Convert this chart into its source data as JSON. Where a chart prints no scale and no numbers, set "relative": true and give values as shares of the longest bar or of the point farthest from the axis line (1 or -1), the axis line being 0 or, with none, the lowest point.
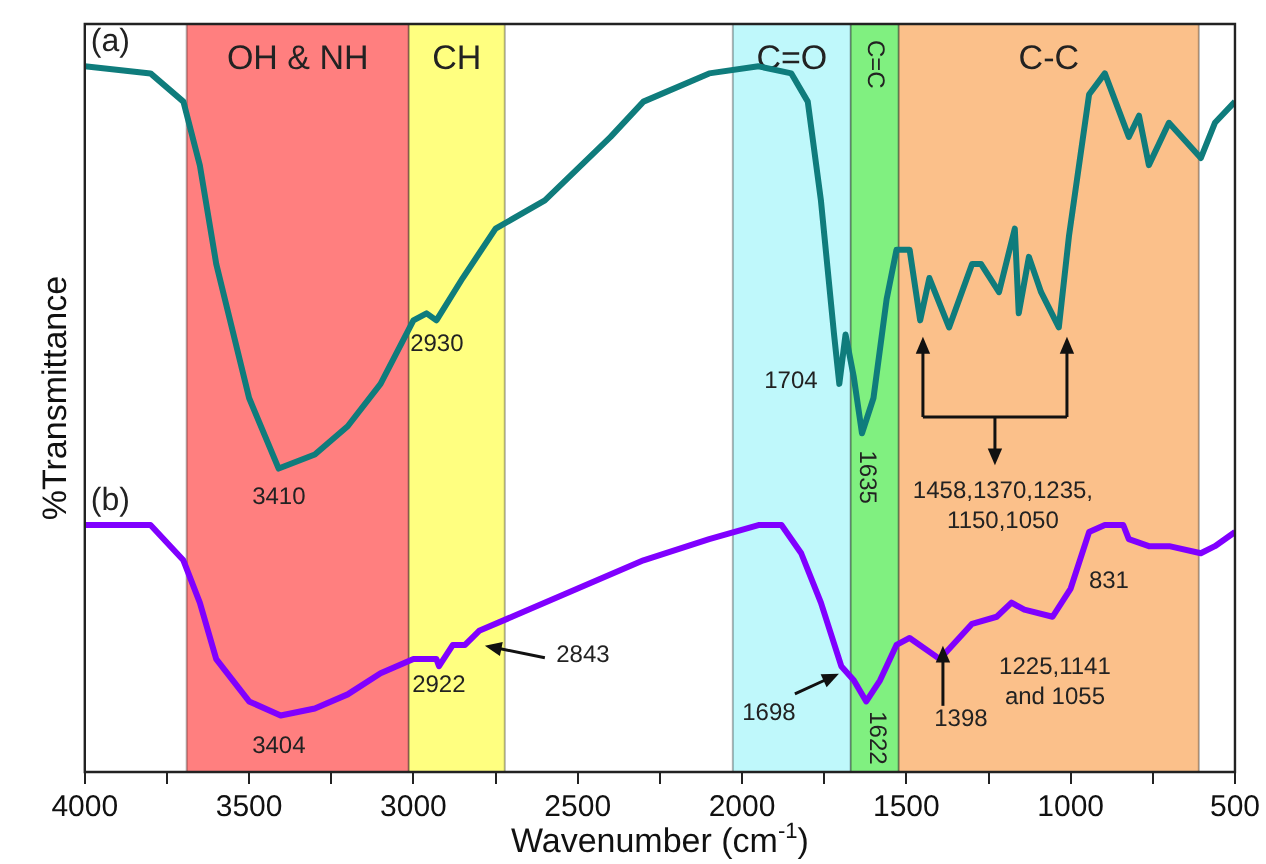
{
  "chart_data": {
    "type": "line",
    "relative": true,
    "xlabel": "Wavenumber (cm$^{-1}$)",
    "ylabel": "%Transmittance",
    "xlim": [
      4000,
      500
    ],
    "xticks": [
      4000,
      {
        "value": 3750,
        "label": null
      },
      3500,
      {
        "value": 3250,
        "label": null
      },
      3000,
      {
        "value": 2750,
        "label": null
      },
      2500,
      {
        "value": 2250,
        "label": null
      },
      2000,
      {
        "value": 1750,
        "label": null
      },
      1500,
      {
        "value": 1250,
        "label": null
      },
      1000,
      {
        "value": 750,
        "label": null
      },
      500
    ],
    "tick_labels": "x",
    "grid": false,
    "legend": false,
    "marker": "none",
    "line_style": "solid",
    "series": [
      {
        "name": "(a)",
        "color": "#0f7c7c",
        "x": [
          4000,
          3800,
          3700,
          3650,
          3600,
          3500,
          3410,
          3300,
          3200,
          3100,
          3000,
          2960,
          2930,
          2850,
          2750,
          2600,
          2400,
          2300,
          2100,
          1950,
          1850,
          1800,
          1760,
          1720,
          1704,
          1685,
          1660,
          1635,
          1600,
          1560,
          1530,
          1490,
          1458,
          1430,
          1370,
          1300,
          1273,
          1218,
          1170,
          1158,
          1127,
          1090,
          1036,
          1005,
          944,
          896,
          823,
          792,
          762,
          701,
          604,
          561,
          500
        ],
        "values": [
          1.0,
          0.99,
          0.95,
          0.86,
          0.72,
          0.53,
          0.43,
          0.45,
          0.49,
          0.55,
          0.64,
          0.65,
          0.64,
          0.7,
          0.77,
          0.81,
          0.9,
          0.95,
          0.99,
          1.0,
          0.99,
          0.95,
          0.81,
          0.62,
          0.55,
          0.62,
          0.56,
          0.48,
          0.53,
          0.67,
          0.74,
          0.74,
          0.64,
          0.7,
          0.63,
          0.72,
          0.72,
          0.68,
          0.77,
          0.65,
          0.73,
          0.68,
          0.63,
          0.76,
          0.96,
          0.99,
          0.9,
          0.93,
          0.86,
          0.92,
          0.87,
          0.92,
          0.95
        ]
      },
      {
        "name": "(b)",
        "color": "#8000ff",
        "x": [
          4000,
          3800,
          3700,
          3650,
          3600,
          3500,
          3404,
          3300,
          3200,
          3100,
          3000,
          2930,
          2922,
          2880,
          2843,
          2800,
          2700,
          2500,
          2300,
          2100,
          1950,
          1880,
          1820,
          1760,
          1698,
          1660,
          1622,
          1580,
          1530,
          1490,
          1398,
          1300,
          1225,
          1180,
          1141,
          1055,
          1000,
          944,
          896,
          840,
          823,
          762,
          700,
          604,
          561,
          500
        ],
        "values": [
          0.35,
          0.35,
          0.3,
          0.24,
          0.16,
          0.1,
          0.08,
          0.09,
          0.11,
          0.14,
          0.16,
          0.16,
          0.15,
          0.18,
          0.18,
          0.2,
          0.22,
          0.26,
          0.3,
          0.33,
          0.35,
          0.35,
          0.31,
          0.24,
          0.15,
          0.13,
          0.1,
          0.13,
          0.18,
          0.19,
          0.16,
          0.21,
          0.22,
          0.24,
          0.23,
          0.22,
          0.26,
          0.34,
          0.35,
          0.35,
          0.33,
          0.32,
          0.32,
          0.31,
          0.32,
          0.34
        ]
      }
    ],
    "bands": [
      {
        "axis": "x",
        "from": 3690,
        "to": 3014,
        "label": "OH & NH",
        "color": "#ff7f7f"
      },
      {
        "axis": "x",
        "from": 3014,
        "to": 2722,
        "label": "CH",
        "color": "#ffff80"
      },
      {
        "axis": "x",
        "from": 2028,
        "to": 1669,
        "label": "C=O",
        "color": "#bff8fb"
      },
      {
        "axis": "x",
        "from": 1669,
        "to": 1523,
        "label": "C=C",
        "color": "#80f080"
      },
      {
        "axis": "x",
        "from": 1523,
        "to": 610,
        "label": "C-C",
        "color": "#fbc08a"
      }
    ],
    "annotations": [
      "3410",
      "2930",
      "1704",
      "1635",
      "1458,1370,1235,\n1150,1050",
      "3404",
      "2922",
      "2843",
      "1698",
      "1622",
      "1398",
      "1225,1141\nand 1055",
      "831"
    ]
  }
}
